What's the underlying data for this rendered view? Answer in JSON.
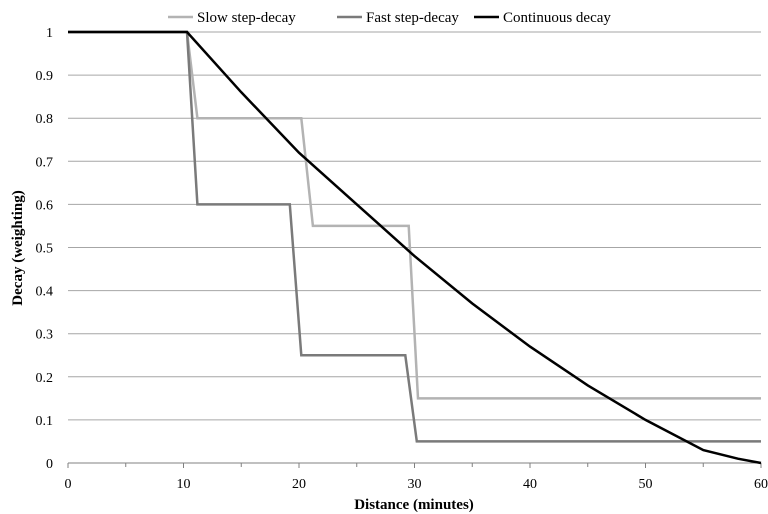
{
  "chart_data": {
    "type": "line",
    "title": "",
    "xlabel": "Distance (minutes)",
    "ylabel": "Decay (weighting)",
    "xlim": [
      0,
      60
    ],
    "ylim": [
      0,
      1
    ],
    "xticks": [
      "0",
      "10",
      "20",
      "30",
      "40",
      "50",
      "60"
    ],
    "yticks": [
      "0",
      "0.1",
      "0.2",
      "0.3",
      "0.4",
      "0.5",
      "0.6",
      "0.7",
      "0.8",
      "0.9",
      "1"
    ],
    "grid": "horizontal",
    "legend_position": "top",
    "series": [
      {
        "name": "Slow step-decay",
        "color": "#b3b3b3",
        "x": [
          0,
          10.3,
          11.2,
          20.2,
          21.2,
          29.5,
          30.3,
          60
        ],
        "y": [
          1,
          1,
          0.8,
          0.8,
          0.55,
          0.55,
          0.15,
          0.15
        ]
      },
      {
        "name": "Fast step-decay",
        "color": "#7a7a7a",
        "x": [
          0,
          10.3,
          11.2,
          19.2,
          20.2,
          29.2,
          30.2,
          60
        ],
        "y": [
          1,
          1,
          0.6,
          0.6,
          0.25,
          0.25,
          0.05,
          0.05
        ]
      },
      {
        "name": "Continuous decay",
        "color": "#000000",
        "x": [
          0,
          10.3,
          15,
          20,
          25,
          30,
          35,
          40,
          45,
          50,
          55,
          58,
          60
        ],
        "y": [
          1,
          1,
          0.86,
          0.72,
          0.6,
          0.48,
          0.37,
          0.27,
          0.18,
          0.1,
          0.03,
          0.01,
          0
        ]
      }
    ]
  }
}
